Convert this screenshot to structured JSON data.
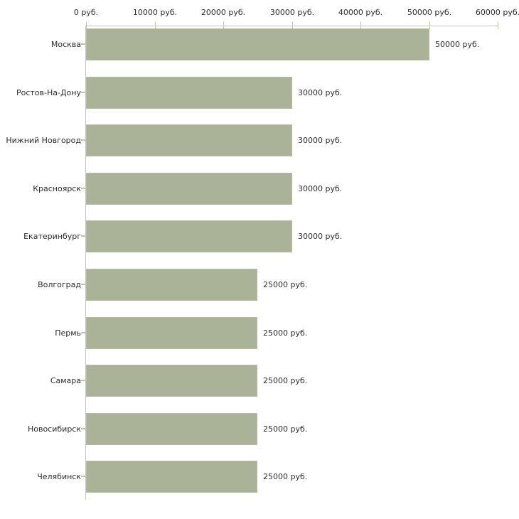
{
  "chart_data": {
    "type": "bar",
    "orientation": "horizontal",
    "title": "",
    "xlabel": "",
    "ylabel": "",
    "unit": "руб.",
    "categories": [
      "Москва",
      "Ростов-На-Дону",
      "Нижний Новгород",
      "Красноярск",
      "Екатеринбург",
      "Волгоград",
      "Пермь",
      "Самара",
      "Новосибирск",
      "Челябинск"
    ],
    "values": [
      50000,
      30000,
      30000,
      30000,
      30000,
      25000,
      25000,
      25000,
      25000,
      25000
    ],
    "value_labels": [
      "50000 руб.",
      "30000 руб.",
      "30000 руб.",
      "30000 руб.",
      "30000 руб.",
      "25000 руб.",
      "25000 руб.",
      "25000 руб.",
      "25000 руб.",
      "25000 руб."
    ],
    "x_tick_values": [
      0,
      10000,
      20000,
      30000,
      40000,
      50000,
      60000
    ],
    "x_tick_labels": [
      "0 руб.",
      "10000 руб.",
      "20000 руб.",
      "30000 руб.",
      "40000 руб.",
      "50000 руб.",
      "60000 руб."
    ],
    "xlim": [
      0,
      60000
    ],
    "grid": false,
    "legend": false,
    "colors": {
      "bar_fill": "#aab298",
      "bar_border": "#b6bca4",
      "tick_mark": "#c4c49c",
      "axis_line": "#c3c3c3",
      "text": "#2b2b2b",
      "background": "#ffffff"
    }
  }
}
